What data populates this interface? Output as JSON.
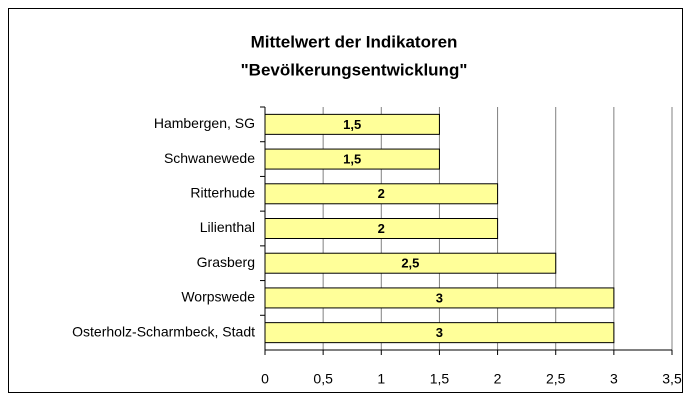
{
  "chart_data": {
    "type": "barh",
    "title": [
      "Mittelwert der Indikatoren",
      "\"Bevölkerungsentwicklung\""
    ],
    "categories": [
      "Hambergen, SG",
      "Schwanewede",
      "Ritterhude",
      "Lilienthal",
      "Grasberg",
      "Worpswede",
      "Osterholz-Scharmbeck, Stadt"
    ],
    "values": [
      1.5,
      1.5,
      2,
      2,
      2.5,
      3,
      3
    ],
    "value_labels": [
      "1,5",
      "1,5",
      "2",
      "2",
      "2,5",
      "3",
      "3"
    ],
    "color": "#ffff99",
    "xlim": [
      0,
      3.5
    ],
    "xticks": [
      0,
      {
        "value": 0.5,
        "label": "0,5"
      },
      1,
      {
        "value": 1.5,
        "label": "1,5"
      },
      2,
      {
        "value": 2.5,
        "label": "2,5"
      },
      3,
      {
        "value": 3.5,
        "label": "3,5"
      }
    ],
    "grid": true
  }
}
